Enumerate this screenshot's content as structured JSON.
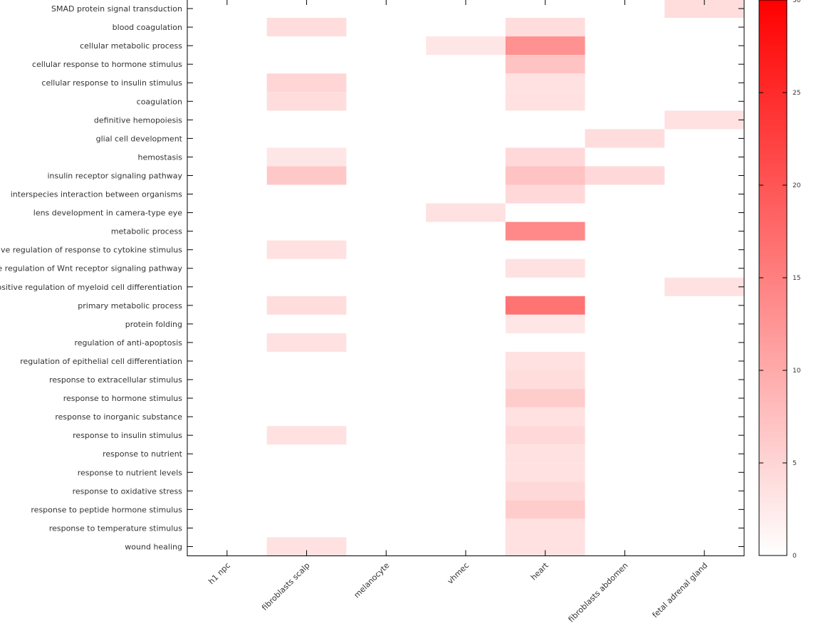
{
  "chart_data": {
    "type": "heatmap",
    "title": "",
    "xlabel": "",
    "ylabel": "",
    "columns": [
      "h1 npc",
      "fibroblasts scalp",
      "melanocyte",
      "vhmec",
      "heart",
      "fibroblasts abdomen",
      "fetal adrenal gland"
    ],
    "rows": [
      "SMAD protein signal transduction",
      "blood coagulation",
      "cellular metabolic process",
      "cellular response to hormone stimulus",
      "cellular response to insulin stimulus",
      "coagulation",
      "definitive hemopoiesis",
      "glial cell development",
      "hemostasis",
      "insulin receptor signaling pathway",
      "interspecies interaction between organisms",
      "lens development in camera-type eye",
      "metabolic process",
      "negative regulation of response to cytokine stimulus",
      "negative regulation of Wnt receptor signaling pathway",
      "positive regulation of myeloid cell differentiation",
      "primary metabolic process",
      "protein folding",
      "regulation of anti-apoptosis",
      "regulation of epithelial cell differentiation",
      "response to extracellular stimulus",
      "response to hormone stimulus",
      "response to inorganic substance",
      "response to insulin stimulus",
      "response to nutrient",
      "response to nutrient levels",
      "response to oxidative stress",
      "response to peptide hormone stimulus",
      "response to temperature stimulus",
      "wound healing"
    ],
    "values": [
      [
        0,
        0,
        0,
        0,
        0,
        0,
        4
      ],
      [
        0,
        4,
        0,
        0,
        4,
        0,
        0
      ],
      [
        0,
        0,
        0,
        3,
        13,
        0,
        0
      ],
      [
        0,
        0,
        0,
        0,
        7,
        0,
        0
      ],
      [
        0,
        5,
        0,
        0,
        3.5,
        0,
        0
      ],
      [
        0,
        4,
        0,
        0,
        3.5,
        0,
        0
      ],
      [
        0,
        0,
        0,
        0,
        0,
        0,
        3.5
      ],
      [
        0,
        0,
        0,
        0,
        0,
        4,
        0
      ],
      [
        0,
        3,
        0,
        0,
        4.5,
        0,
        0
      ],
      [
        0,
        6.5,
        0,
        0,
        7,
        4.5,
        0
      ],
      [
        0,
        0,
        0,
        0,
        4.5,
        0,
        0
      ],
      [
        0,
        0,
        0,
        3.5,
        0,
        0,
        0
      ],
      [
        0,
        0,
        0,
        0,
        14,
        0,
        0
      ],
      [
        0,
        3.5,
        0,
        0,
        0,
        0,
        0
      ],
      [
        0,
        0,
        0,
        0,
        3.5,
        0,
        0
      ],
      [
        0,
        0,
        0,
        0,
        0,
        0,
        3.5
      ],
      [
        0,
        4,
        0,
        0,
        16.5,
        0,
        0
      ],
      [
        0,
        0,
        0,
        0,
        3,
        0,
        0
      ],
      [
        0,
        3.5,
        0,
        0,
        0,
        0,
        0
      ],
      [
        0,
        0,
        0,
        0,
        3.5,
        0,
        0
      ],
      [
        0,
        0,
        0,
        0,
        4,
        0,
        0
      ],
      [
        0,
        0,
        0,
        0,
        6,
        0,
        0
      ],
      [
        0,
        0,
        0,
        0,
        3.5,
        0,
        0
      ],
      [
        0,
        3.5,
        0,
        0,
        4.5,
        0,
        0
      ],
      [
        0,
        0,
        0,
        0,
        3.5,
        0,
        0
      ],
      [
        0,
        0,
        0,
        0,
        3.5,
        0,
        0
      ],
      [
        0,
        0,
        0,
        0,
        4.5,
        0,
        0
      ],
      [
        0,
        0,
        0,
        0,
        6,
        0,
        0
      ],
      [
        0,
        0,
        0,
        0,
        3.5,
        0,
        0
      ],
      [
        0,
        3.5,
        0,
        0,
        3.5,
        0,
        0
      ]
    ],
    "colorbar": {
      "min": 0,
      "max": 30,
      "ticks": [
        0,
        5,
        10,
        15,
        20,
        25,
        30
      ],
      "colors": [
        "#ffffff",
        "#ff0000"
      ]
    },
    "grid": false,
    "legend": "colorbar-right"
  }
}
